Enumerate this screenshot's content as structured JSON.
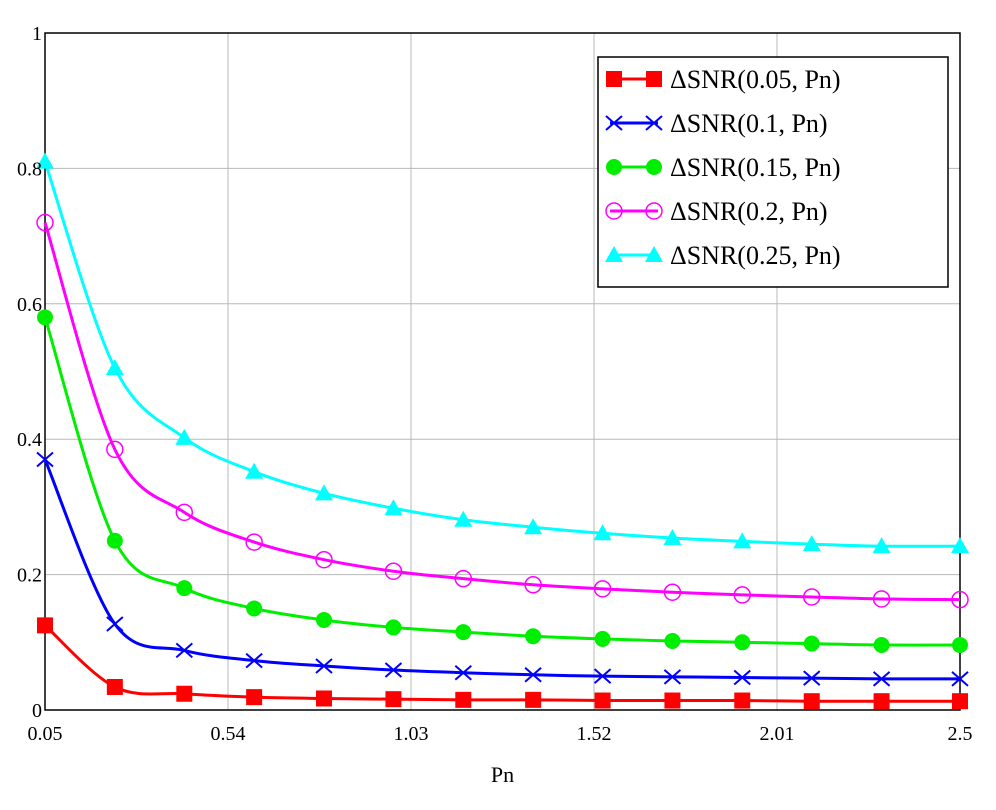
{
  "chart_data": {
    "type": "line",
    "xlabel": "Pn",
    "ylabel": "",
    "xlim": [
      0.05,
      2.5
    ],
    "ylim": [
      0,
      1
    ],
    "x_ticks": [
      "0.05",
      "0.54",
      "1.03",
      "1.52",
      "2.01",
      "2.5"
    ],
    "y_ticks": [
      "0",
      "0.2",
      "0.4",
      "0.6",
      "0.8",
      "1"
    ],
    "grid": true,
    "legend_position": "top-right",
    "marker_x": [
      0.05,
      0.237,
      0.423,
      0.61,
      0.797,
      0.983,
      1.17,
      1.357,
      1.543,
      1.73,
      1.917,
      2.103,
      2.29,
      2.5
    ],
    "series": [
      {
        "name": "ΔSNR(0.05, Pn)",
        "color": "#ff0000",
        "marker": "square",
        "values": [
          0.125,
          0.034,
          0.024,
          0.019,
          0.017,
          0.016,
          0.015,
          0.015,
          0.014,
          0.014,
          0.014,
          0.013,
          0.013,
          0.013
        ]
      },
      {
        "name": "ΔSNR(0.1, Pn)",
        "color": "#0000ff",
        "marker": "x",
        "values": [
          0.37,
          0.127,
          0.088,
          0.073,
          0.065,
          0.059,
          0.055,
          0.052,
          0.05,
          0.049,
          0.048,
          0.047,
          0.046,
          0.046
        ]
      },
      {
        "name": "ΔSNR(0.15, Pn)",
        "color": "#00ee00",
        "marker": "circle",
        "values": [
          0.58,
          0.25,
          0.18,
          0.15,
          0.133,
          0.122,
          0.115,
          0.109,
          0.105,
          0.102,
          0.1,
          0.098,
          0.096,
          0.096
        ]
      },
      {
        "name": "ΔSNR(0.2, Pn)",
        "color": "#ff00ff",
        "marker": "circle-open",
        "values": [
          0.72,
          0.385,
          0.292,
          0.248,
          0.222,
          0.205,
          0.194,
          0.185,
          0.179,
          0.174,
          0.17,
          0.167,
          0.164,
          0.163
        ]
      },
      {
        "name": "ΔSNR(0.25, Pn)",
        "color": "#00ffff",
        "marker": "triangle",
        "values": [
          0.81,
          0.505,
          0.402,
          0.352,
          0.32,
          0.298,
          0.281,
          0.27,
          0.261,
          0.254,
          0.249,
          0.245,
          0.242,
          0.242
        ]
      }
    ]
  }
}
